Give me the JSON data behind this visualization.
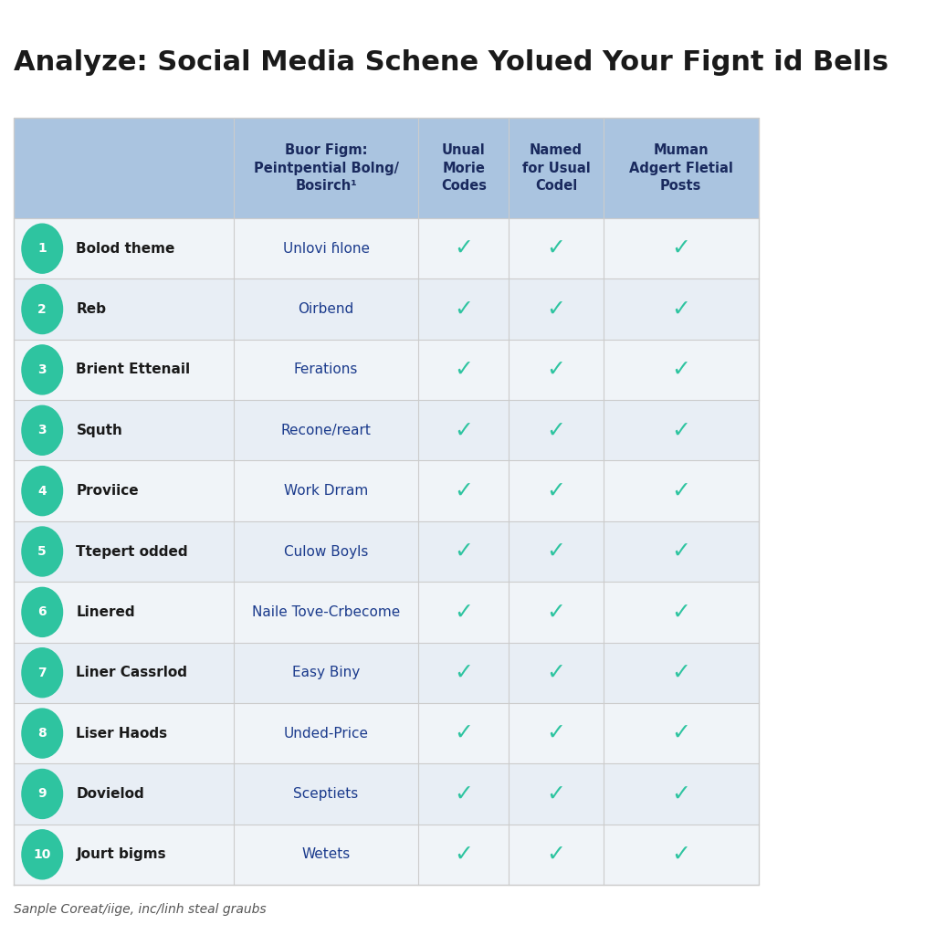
{
  "title": "Analyze: Social Media Schene Yolued Your Fignt id Bells",
  "footer": "Sanple Coreat/iige, inc/linh steal graubs",
  "col_headers": [
    "Buor Figm:\nPeintpential Bolng/\nBosirch¹",
    "Unual\nMorie\nCodes",
    "Named\nfor Usual\nCodel",
    "Muman\nAdgert Fletial\nPosts"
  ],
  "rows": [
    {
      "num": "1",
      "label": "Bolod theme",
      "detail": "Unlovi ɦlone",
      "c1": true,
      "c2": true,
      "c3": true
    },
    {
      "num": "2",
      "label": "Reb",
      "detail": "Oirbend",
      "c1": true,
      "c2": true,
      "c3": true
    },
    {
      "num": "3",
      "label": "Brient Ettenail",
      "detail": "Ferations",
      "c1": true,
      "c2": true,
      "c3": true
    },
    {
      "num": "3",
      "label": "Squth",
      "detail": "Recone/reart",
      "c1": true,
      "c2": true,
      "c3": true
    },
    {
      "num": "4",
      "label": "Proviice",
      "detail": "Work Drram",
      "c1": true,
      "c2": true,
      "c3": true
    },
    {
      "num": "5",
      "label": "Ttepert odded",
      "detail": "Culow Boyls",
      "c1": true,
      "c2": true,
      "c3": true
    },
    {
      "num": "6",
      "label": "Linered",
      "detail": "Naile Tove-Crbecome",
      "c1": true,
      "c2": true,
      "c3": true
    },
    {
      "num": "7",
      "label": "Liner Cassrlod",
      "detail": "Easy Biny",
      "c1": true,
      "c2": true,
      "c3": true
    },
    {
      "num": "8",
      "label": "Liser Haods",
      "detail": "Unded-Price",
      "c1": true,
      "c2": true,
      "c3": true
    },
    {
      "num": "9",
      "label": "Dovielod",
      "detail": "Sceptiets",
      "c1": true,
      "c2": true,
      "c3": true
    },
    {
      "num": "10",
      "label": "Jourt bigms",
      "detail": "Wetets",
      "c1": true,
      "c2": true,
      "c3": true
    }
  ],
  "colors": {
    "title_text": "#1a1a1a",
    "header_bg": "#aac4e0",
    "header_text": "#1a2a5e",
    "row_odd_bg": "#f0f4f8",
    "row_even_bg": "#e8eef5",
    "badge_bg": "#2ec4a0",
    "badge_text": "#ffffff",
    "detail_text": "#1a3a8c",
    "label_text": "#1a1a1a",
    "check_color": "#2ec4a0",
    "grid_line": "#cccccc",
    "footer_text": "#555555",
    "background": "#ffffff"
  }
}
